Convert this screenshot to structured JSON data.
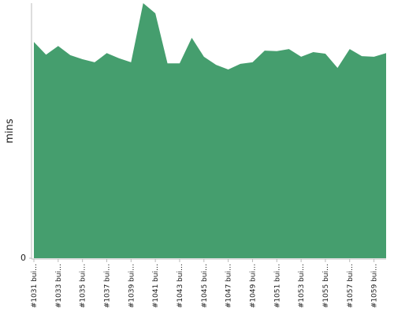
{
  "chart_data": {
    "type": "area",
    "y_label": "mins",
    "color": "#459e6e",
    "categories": [
      "#1031 bui…",
      null,
      "#1033 bui…",
      null,
      "#1035 bui…",
      null,
      "#1037 bui…",
      null,
      "#1039 bui…",
      null,
      "#1041 bui…",
      null,
      "#1043 bui…",
      null,
      "#1045 bui…",
      null,
      "#1047 bui…",
      null,
      "#1049 bui…",
      null,
      "#1051 bui…",
      null,
      "#1053 bui…",
      null,
      "#1055 bui…",
      null,
      "#1057 bui…",
      null,
      "#1059 bui…",
      null
    ],
    "values": [
      42.4,
      39.9,
      41.6,
      39.8,
      39.0,
      38.4,
      40.2,
      39.2,
      38.4,
      50.0,
      48.0,
      38.2,
      38.2,
      43.2,
      39.5,
      37.9,
      37.0,
      38.1,
      38.4,
      40.7,
      40.6,
      41.0,
      39.5,
      40.4,
      40.1,
      37.3,
      41.0,
      39.6,
      39.5,
      40.2
    ],
    "ylim": [
      0,
      50
    ],
    "yticks": [
      0
    ]
  }
}
